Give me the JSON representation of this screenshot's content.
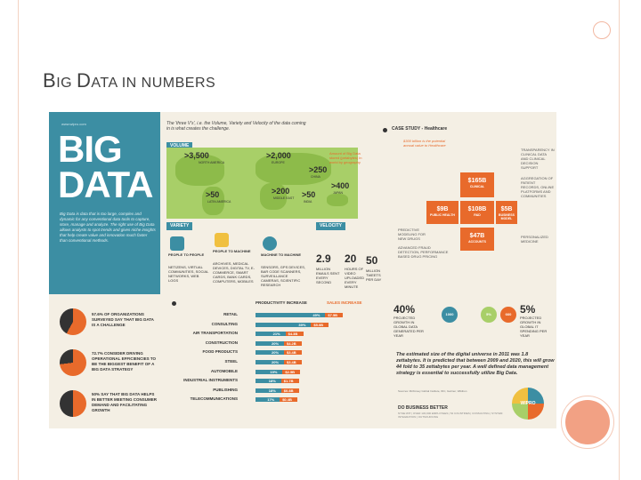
{
  "slide": {
    "title_first": "B",
    "title_rest1": "IG ",
    "title_d": "D",
    "title_rest2": "ATA IN NUMBERS"
  },
  "infographic": {
    "sidebar_url": "www.wipro.com",
    "logo_line1": "BIG",
    "logo_line2": "DATA",
    "intro_text": "Big Data is data that is too large, complex and dynamic for any conventional data tools to capture, store, manage and analyze. The right use of Big Data allows analysts to spot trends and gives niche insights that help create value and innovation much faster than conventional methods.",
    "headline": "The 'three V's', i.e. the Volume, Variety and Velocity of the data coming in is what creates the challenge.",
    "sections": {
      "volume": "VOLUME",
      "variety": "VARIETY",
      "velocity": "VELOCITY",
      "case_study": "CASE STUDY - Healthcare"
    },
    "map_values": [
      {
        "value": ">3,500",
        "label": "NORTH AMERICA"
      },
      {
        "value": ">2,000",
        "label": "EUROPE"
      },
      {
        "value": ">250",
        "label": "CHINA"
      },
      {
        "value": ">400",
        "label": "JAPAN"
      },
      {
        "value": ">200",
        "label": "MIDDLE EAST"
      },
      {
        "value": ">50",
        "label": "INDIA"
      },
      {
        "value": ">50",
        "label": "LATIN AMERICA"
      }
    ],
    "map_note": "Amount of Big Data stored (petabytes) in world by geography",
    "health_note": "$300 billion is the potential annual value to Healthcare",
    "health_boxes": [
      {
        "value": "$165B",
        "label": "CLINICAL"
      },
      {
        "value": "$9B",
        "label": "PUBLIC HEALTH"
      },
      {
        "value": "$108B",
        "label": "R&D"
      },
      {
        "value": "$5B",
        "label": "BUSINESS MODEL"
      },
      {
        "value": "$47B",
        "label": "ACCOUNTS"
      }
    ],
    "health_side_notes": [
      "TRANSPARENCY IN CLINICAL DATA AND CLINICAL DECISION SUPPORT",
      "AGGREGATION OF PATIENT RECORDS, ONLINE PLATFORMS AND COMMUNITIES",
      "PREDICTIVE MODELING FOR NEW DRUGS",
      "PERSONALIZED MEDICINE",
      "ADVANCED FRAUD DETECTION, PERFORMANCE BASED DRUG PRICING"
    ],
    "variety_items": [
      {
        "title": "PEOPLE TO PEOPLE",
        "desc": "NETIZENS, VIRTUAL COMMUNITIES, SOCIAL NETWORKS, WEB LOGS"
      },
      {
        "title": "PEOPLE TO MACHINE",
        "desc": "ARCHIVES, MEDICAL DEVICES, DIGITAL TV, E-COMMERCE, SMART CARDS, BANK CARDS, COMPUTERS, MOBILES"
      },
      {
        "title": "MACHINE TO MACHINE",
        "desc": "SENSORS, GPS DEVICES, BAR CODE SCANNERS, SURVEILLANCE CAMERAS, SCIENTIFIC RESEARCH"
      }
    ],
    "velocity_items": [
      {
        "value": "2.9",
        "label": "MILLION EMAILS SENT EVERY SECOND"
      },
      {
        "value": "20",
        "label": "HOURS OF VIDEO UPLOADED EVERY MINUTE"
      },
      {
        "value": "50",
        "label": "MILLION TWEETS PER DAY"
      }
    ],
    "challenge_stats": [
      {
        "text": "57.6% OF ORGANIZATIONS SURVEYED SAY THAT BIG DATA IS A CHALLENGE"
      },
      {
        "text": "72.7% CONSIDER DRIVING OPERATIONAL EFFICIENCIES TO BE THE BIGGEST BENEFIT OF A BIG DATA STRATEGY"
      },
      {
        "text": "50% SAY THAT BIG DATA HELPS IN BETTER MEETING CONSUMER DEMAND AND FACILITATING GROWTH"
      }
    ],
    "bar_headers": {
      "prod": "PRODUCTIVITY INCREASE",
      "sales": "SALES INCREASE"
    },
    "bars": [
      {
        "label": "RETAIL",
        "pct": 0.49,
        "pct_text": "49%",
        "amount": "$7.5B"
      },
      {
        "label": "CONSULTING",
        "pct": 0.39,
        "pct_text": "39%",
        "amount": "$5.0B"
      },
      {
        "label": "AIR TRANSPORTATION",
        "pct": 0.21,
        "pct_text": "21%",
        "amount": "$4.3B"
      },
      {
        "label": "CONSTRUCTION",
        "pct": 0.2,
        "pct_text": "20%",
        "amount": "$4.2B"
      },
      {
        "label": "FOOD PRODUCTS",
        "pct": 0.2,
        "pct_text": "20%",
        "amount": "$3.4B"
      },
      {
        "label": "STEEL",
        "pct": 0.2,
        "pct_text": "20%",
        "amount": "$3.4B"
      },
      {
        "label": "AUTOMOBILE",
        "pct": 0.19,
        "pct_text": "19%",
        "amount": "$2.5B"
      },
      {
        "label": "INDUSTRIAL INSTRUMENTS",
        "pct": 0.18,
        "pct_text": "18%",
        "amount": "$1.7B"
      },
      {
        "label": "PUBLISHING",
        "pct": 0.18,
        "pct_text": "18%",
        "amount": "$0.8B"
      },
      {
        "label": "TELECOMMUNICATIONS",
        "pct": 0.17,
        "pct_text": "17%",
        "amount": "$0.4B"
      }
    ],
    "growth_left": {
      "value": "40%",
      "text": "PROJECTED GROWTH IN GLOBAL DATA GENERATED PER YEAR"
    },
    "growth_right": {
      "value": "5%",
      "text": "PROJECTED GROWTH IN GLOBAL IT SPENDING PER YEAR"
    },
    "growth_badges": [
      "1000",
      "5%",
      "660"
    ],
    "estimate_text": "The estimated size of the digital universe in 2011 was 1.8 zettabytes. It is predicted that between 2009 and 2020, this will grow 44 fold to 35 zettabytes per year. A well defined data management strategy is essential to successfully utilize Big Data.",
    "sources_text": "Sources: McKinsey Global Institute, IDC, Gartner, Wikibon",
    "footer_title": "DO BUSINESS BETTER",
    "footer_sub": "NYSE:WIT | OVER 130,000 EMPLOYEES | 54 COUNTRIES | CONSULTING | SYSTEM INTEGRATION | OUTSOURCING",
    "brand": "WIPRO",
    "colors": {
      "teal": "#3c8ea3",
      "orange": "#e86a2b",
      "green": "#a8cf68",
      "cream": "#f4efe4"
    }
  }
}
